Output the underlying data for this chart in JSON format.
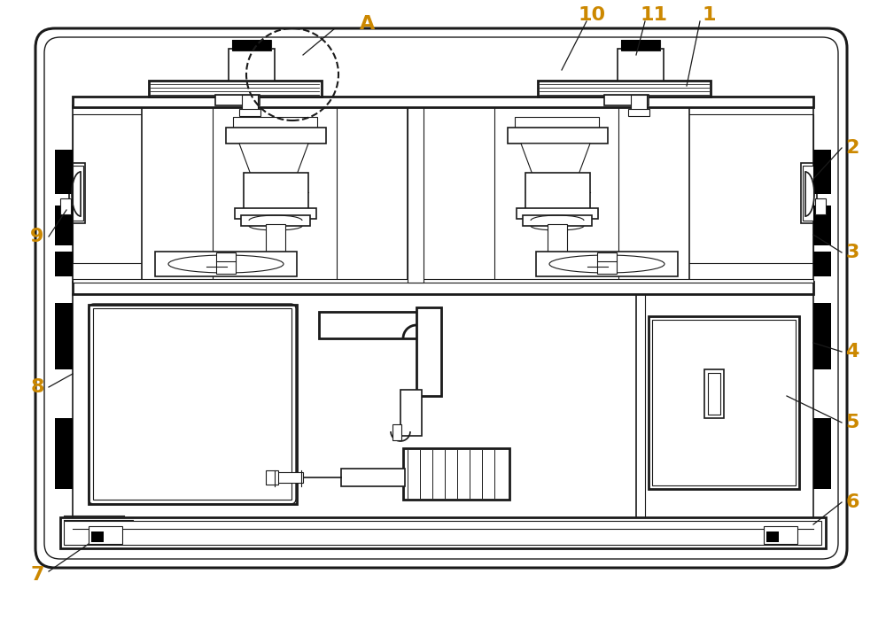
{
  "bg_color": "#ffffff",
  "line_color": "#1a1a1a",
  "label_color": "#cc8800",
  "figsize": [
    10.0,
    7.27
  ],
  "dpi": 100
}
